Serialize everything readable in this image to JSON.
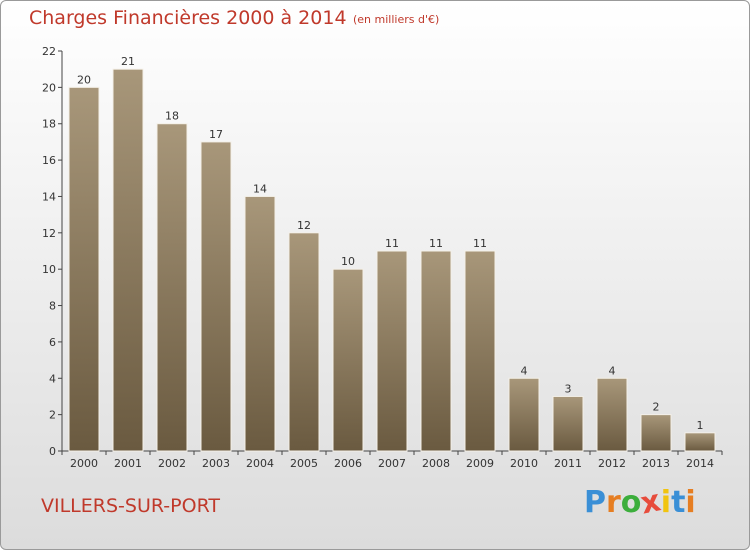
{
  "header": {
    "title": "Charges Financières 2000 à 2014",
    "subtitle": "(en milliers d'€)"
  },
  "footer": {
    "place": "VILLERS-SUR-PORT",
    "logo_letters": [
      "P",
      "r",
      "o",
      "x",
      "i",
      "t",
      "i"
    ],
    "logo_colors": [
      "#3a8fd6",
      "#e67e22",
      "#3cae3c",
      "#e74c3c",
      "#f1c40f",
      "#3a8fd6",
      "#e67e22"
    ]
  },
  "colors": {
    "bar_top": "#a8977a",
    "bar_bottom": "#6a5a40",
    "title": "#c0392b"
  },
  "chart_data": {
    "type": "bar",
    "title": "Charges Financières 2000 à 2014",
    "subtitle": "(en milliers d'€)",
    "categories": [
      "2000",
      "2001",
      "2002",
      "2003",
      "2004",
      "2005",
      "2006",
      "2007",
      "2008",
      "2009",
      "2010",
      "2011",
      "2012",
      "2013",
      "2014"
    ],
    "values": [
      20,
      21,
      18,
      17,
      14,
      12,
      10,
      11,
      11,
      11,
      4,
      3,
      4,
      2,
      1
    ],
    "ylim": [
      0,
      22
    ],
    "yticks": [
      0,
      2,
      4,
      6,
      8,
      10,
      12,
      14,
      16,
      18,
      20,
      22
    ],
    "xlabel": "",
    "ylabel": "",
    "grid": false,
    "legend": "none"
  }
}
